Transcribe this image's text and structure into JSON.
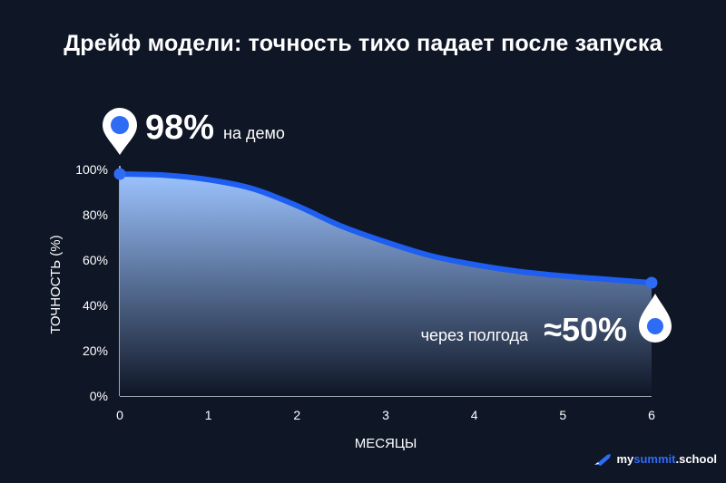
{
  "title": "Дрейф модели: точность тихо падает после запуска",
  "colors": {
    "background": "#0f1626",
    "line": "#1e5ef0",
    "fill_top": "#9cc3ff",
    "fill_bottom": "#0f1626",
    "marker": "#2f6cf5",
    "text": "#ffffff"
  },
  "annotations": {
    "start": {
      "value": "98%",
      "text": "на демо",
      "icon": "map-pin-icon"
    },
    "end": {
      "text": "через полгода",
      "value": "≈50%",
      "icon": "drop-icon"
    }
  },
  "logo": {
    "brand_prefix": "my",
    "brand_accent": "summit",
    "brand_suffix": ".school",
    "icon": "rocket-icon"
  },
  "chart_data": {
    "type": "area",
    "title": "Дрейф модели: точность тихо падает после запуска",
    "xlabel": "МЕСЯЦЫ",
    "ylabel": "ТОЧНОСТЬ (%)",
    "xlim": [
      0,
      6
    ],
    "ylim": [
      0,
      100
    ],
    "x_ticks": [
      "0",
      "1",
      "2",
      "3",
      "4",
      "5",
      "6"
    ],
    "y_ticks": [
      "0%",
      "20%",
      "40%",
      "60%",
      "80%",
      "100%"
    ],
    "grid": false,
    "legend": "none",
    "series": [
      {
        "x": [
          0,
          0.5,
          1,
          1.5,
          2,
          2.5,
          3,
          3.5,
          4,
          4.5,
          5,
          5.5,
          6
        ],
        "y": [
          98,
          97.5,
          95.5,
          91.5,
          84,
          75,
          68,
          62,
          58,
          55,
          53,
          51.5,
          50
        ]
      }
    ]
  }
}
